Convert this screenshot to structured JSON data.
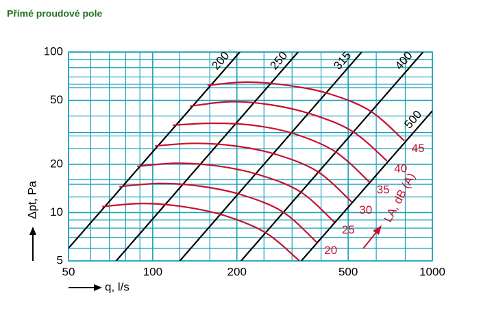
{
  "title": "Přímé proudové pole",
  "chart_data": {
    "type": "line",
    "xlabel": "q, l/s",
    "ylabel": "Δpt, Pa",
    "curve_label": "LA, dB (A)",
    "xlog": true,
    "ylog": true,
    "grid": true,
    "grid_color": "#1aa0b8",
    "xlim": [
      50,
      1000
    ],
    "ylim": [
      5,
      100
    ],
    "xticks": [
      50,
      100,
      200,
      500,
      1000
    ],
    "yticks": [
      5,
      10,
      20,
      50,
      100
    ],
    "xminor": [
      60,
      70,
      80,
      90,
      125,
      160,
      250,
      315,
      400,
      630,
      800
    ],
    "yminor": [
      6,
      7,
      8,
      9,
      12.5,
      15,
      16,
      25,
      30,
      31.5,
      40,
      60,
      63,
      70,
      80,
      90
    ],
    "series": [
      {
        "name": "200",
        "color": "#000000",
        "x": [
          50,
          205
        ],
        "values": [
          6,
          100
        ]
      },
      {
        "name": "250",
        "color": "#000000",
        "x": [
          74,
          331
        ],
        "values": [
          5,
          100
        ]
      },
      {
        "name": "315",
        "color": "#000000",
        "x": [
          125,
          559
        ],
        "values": [
          5,
          100
        ]
      },
      {
        "name": "400",
        "color": "#000000",
        "x": [
          207,
          926
        ],
        "values": [
          5,
          100
        ]
      },
      {
        "name": "500",
        "color": "#000000",
        "x": [
          340,
          1000
        ],
        "values": [
          5,
          43
        ]
      },
      {
        "name": "45",
        "color": "#c8102e",
        "x": [
          157,
          217,
          304,
          427,
          599,
          794
        ],
        "values": [
          62,
          65,
          62,
          55,
          43,
          28
        ]
      },
      {
        "name": "40",
        "color": "#c8102e",
        "x": [
          136,
          188,
          263,
          370,
          519,
          688
        ],
        "values": [
          46,
          49,
          47,
          41,
          32,
          21
        ]
      },
      {
        "name": "35",
        "color": "#c8102e",
        "x": [
          118,
          163,
          228,
          320,
          449,
          596
        ],
        "values": [
          35,
          36,
          35,
          31,
          24,
          15.5
        ]
      },
      {
        "name": "30",
        "color": "#c8102e",
        "x": [
          102,
          141,
          197,
          277,
          389,
          516
        ],
        "values": [
          26,
          27,
          26,
          23,
          18,
          11.6
        ]
      },
      {
        "name": "25",
        "color": "#c8102e",
        "x": [
          88,
          122,
          171,
          240,
          337,
          447
        ],
        "values": [
          19.4,
          20.3,
          19.5,
          17.2,
          13.5,
          8.7
        ]
      },
      {
        "name": "20",
        "color": "#c8102e",
        "x": [
          76,
          106,
          148,
          208,
          292,
          387
        ],
        "values": [
          14.5,
          15.2,
          14.6,
          12.9,
          10.1,
          6.5
        ]
      },
      {
        "color": "#c8102e",
        "x": [
          66,
          92,
          128,
          180,
          253,
          335
        ],
        "values": [
          10.9,
          11.4,
          10.9,
          9.6,
          7.5,
          5
        ]
      }
    ]
  }
}
